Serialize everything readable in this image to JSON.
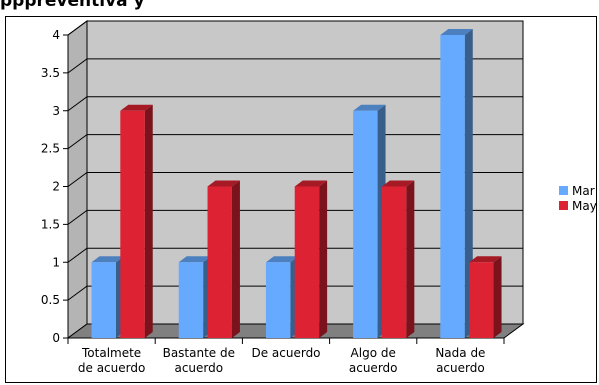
{
  "page": {
    "title": "pppreventiva y"
  },
  "chart_data": {
    "type": "bar",
    "categories": [
      [
        "Totalmete",
        "de acuerdo"
      ],
      [
        "Bastante de",
        "acuerdo"
      ],
      [
        "De acuerdo"
      ],
      [
        "Algo de",
        "acuerdo"
      ],
      [
        "Nada de",
        "acuerdo"
      ]
    ],
    "series": [
      {
        "name": "Mar",
        "values": [
          1,
          1,
          1,
          3,
          4
        ],
        "color": "#66aaff"
      },
      {
        "name": "May",
        "values": [
          3,
          2,
          2,
          2,
          1
        ],
        "color": "#dd2233"
      }
    ],
    "yticks": [
      "0",
      "0.5",
      "1",
      "1.5",
      "2",
      "2.5",
      "3",
      "3.5",
      "4"
    ],
    "ylim": [
      0,
      4
    ],
    "grid": true,
    "legend_position": "right",
    "wall_color": "#c8c8c8",
    "floor_color": "#808080"
  }
}
